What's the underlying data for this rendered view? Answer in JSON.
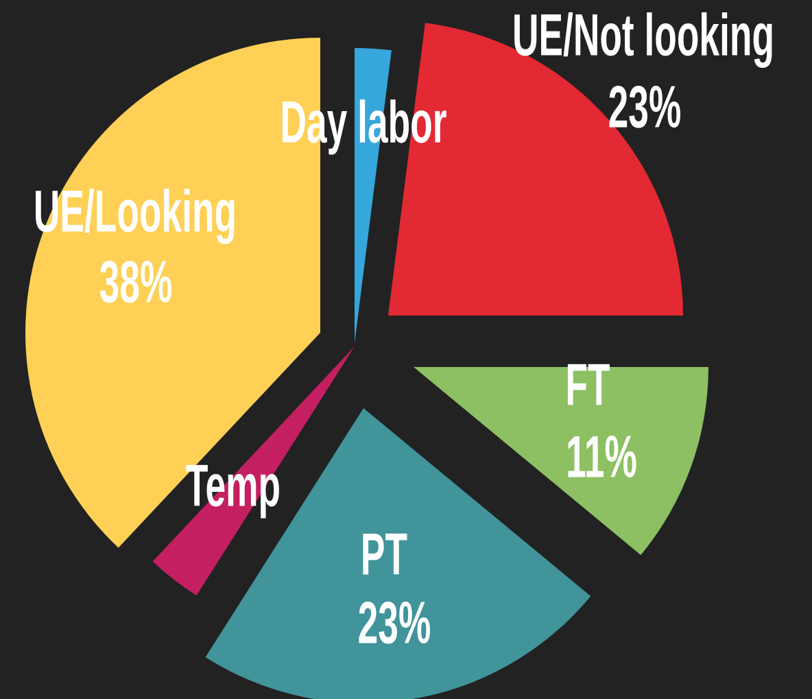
{
  "chart_data": {
    "type": "pie",
    "categories": [
      "Day labor",
      "UE/Not looking",
      "FT",
      "PT",
      "Temp",
      "UE/Looking"
    ],
    "values": [
      2,
      23,
      11,
      23,
      3,
      38
    ],
    "value_labels": [
      null,
      "23%",
      "11%",
      "23%",
      null,
      "38%"
    ],
    "colors": [
      "#35a7dc",
      "#e32933",
      "#8cc063",
      "#40949a",
      "#c41f60",
      "#fed055"
    ]
  }
}
